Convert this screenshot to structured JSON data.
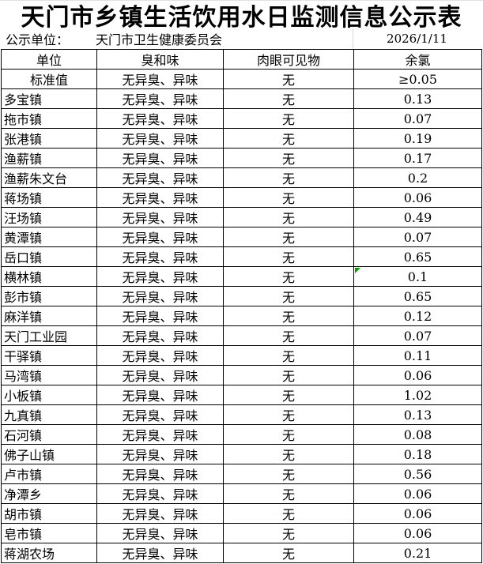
{
  "title": "天门市乡镇生活饮用水日监测信息公示表",
  "meta": {
    "publisher_label": "公示单位：",
    "publisher": "天门市卫生健康委员会",
    "date": "2026/1/11"
  },
  "table": {
    "columns": [
      {
        "key": "unit",
        "label": "单位"
      },
      {
        "key": "odor",
        "label": "臭和味"
      },
      {
        "key": "visible",
        "label": "肉眼可见物"
      },
      {
        "key": "chlorine",
        "label": "余氯"
      }
    ],
    "standard_row": {
      "unit": "标准值",
      "odor": "无异臭、异味",
      "visible": "无",
      "chlorine": "≥0.05"
    },
    "rows": [
      {
        "unit": "多宝镇",
        "odor": "无异臭、异味",
        "visible": "无",
        "chlorine": "0.13"
      },
      {
        "unit": "拖市镇",
        "odor": "无异臭、异味",
        "visible": "无",
        "chlorine": "0.07"
      },
      {
        "unit": "张港镇",
        "odor": "无异臭、异味",
        "visible": "无",
        "chlorine": "0.19"
      },
      {
        "unit": "渔薪镇",
        "odor": "无异臭、异味",
        "visible": "无",
        "chlorine": "0.17"
      },
      {
        "unit": "渔薪朱文台",
        "odor": "无异臭、异味",
        "visible": "无",
        "chlorine": "0.2"
      },
      {
        "unit": "蒋场镇",
        "odor": "无异臭、异味",
        "visible": "无",
        "chlorine": "0.06"
      },
      {
        "unit": "汪场镇",
        "odor": "无异臭、异味",
        "visible": "无",
        "chlorine": "0.49"
      },
      {
        "unit": "黄潭镇",
        "odor": "无异臭、异味",
        "visible": "无",
        "chlorine": "0.07"
      },
      {
        "unit": "岳口镇",
        "odor": "无异臭、异味",
        "visible": "无",
        "chlorine": "0.65"
      },
      {
        "unit": "横林镇",
        "odor": "无异臭、异味",
        "visible": "无",
        "chlorine": "0.1"
      },
      {
        "unit": "彭市镇",
        "odor": "无异臭、异味",
        "visible": "无",
        "chlorine": "0.65"
      },
      {
        "unit": "麻洋镇",
        "odor": "无异臭、异味",
        "visible": "无",
        "chlorine": "0.12"
      },
      {
        "unit": "天门工业园",
        "odor": "无异臭、异味",
        "visible": "无",
        "chlorine": "0.07"
      },
      {
        "unit": "干驿镇",
        "odor": "无异臭、异味",
        "visible": "无",
        "chlorine": "0.11"
      },
      {
        "unit": "马湾镇",
        "odor": "无异臭、异味",
        "visible": "无",
        "chlorine": "0.06"
      },
      {
        "unit": "小板镇",
        "odor": "无异臭、异味",
        "visible": "无",
        "chlorine": "1.02"
      },
      {
        "unit": "九真镇",
        "odor": "无异臭、异味",
        "visible": "无",
        "chlorine": "0.13"
      },
      {
        "unit": "石河镇",
        "odor": "无异臭、异味",
        "visible": "无",
        "chlorine": "0.08"
      },
      {
        "unit": "佛子山镇",
        "odor": "无异臭、异味",
        "visible": "无",
        "chlorine": "0.18"
      },
      {
        "unit": "卢市镇",
        "odor": "无异臭、异味",
        "visible": "无",
        "chlorine": "0.56"
      },
      {
        "unit": "净潭乡",
        "odor": "无异臭、异味",
        "visible": "无",
        "chlorine": "0.06"
      },
      {
        "unit": "胡市镇",
        "odor": "无异臭、异味",
        "visible": "无",
        "chlorine": "0.06"
      },
      {
        "unit": "皂市镇",
        "odor": "无异臭、异味",
        "visible": "无",
        "chlorine": "0.06"
      },
      {
        "unit": "蒋湖农场",
        "odor": "无异臭、异味",
        "visible": "无",
        "chlorine": "0.21"
      }
    ]
  },
  "markers": {
    "flagged_unit": "横林镇"
  },
  "colors": {
    "background": "#ffffff",
    "border": "#000000",
    "gridline": "#d9d9d9",
    "error_indicator": "#00a000"
  }
}
